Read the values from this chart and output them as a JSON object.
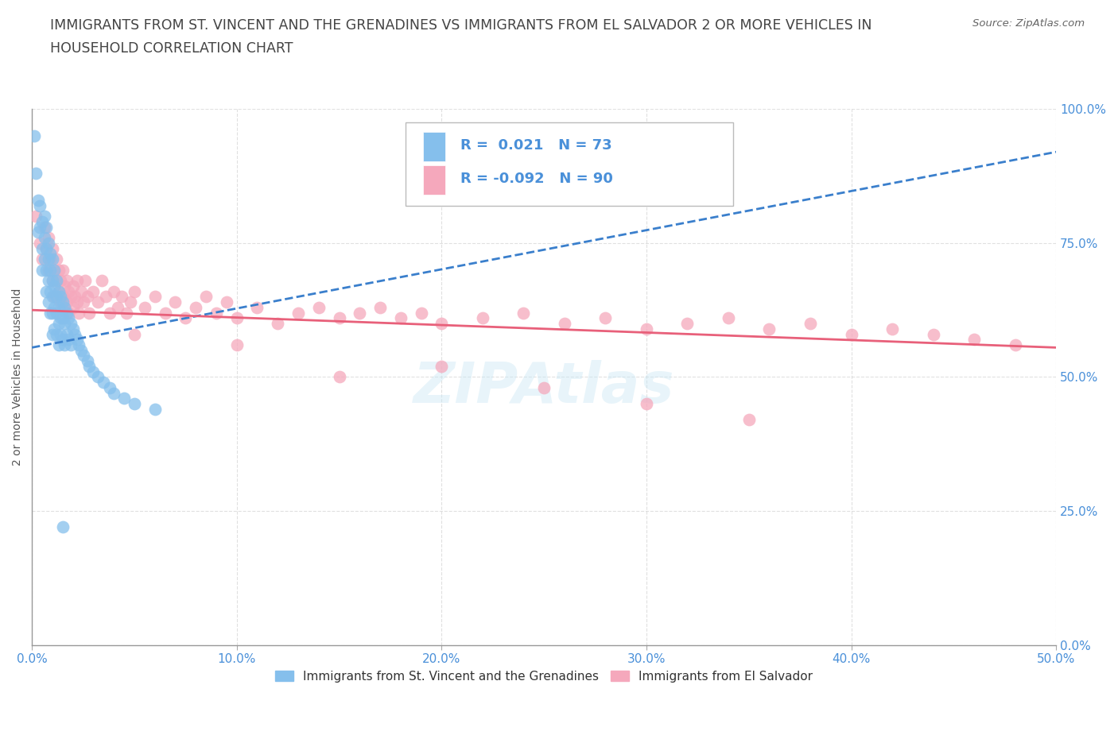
{
  "title": "IMMIGRANTS FROM ST. VINCENT AND THE GRENADINES VS IMMIGRANTS FROM EL SALVADOR 2 OR MORE VEHICLES IN\nHOUSEHOLD CORRELATION CHART",
  "source": "Source: ZipAtlas.com",
  "ylabel": "2 or more Vehicles in Household",
  "xlim": [
    0.0,
    0.5
  ],
  "ylim": [
    0.0,
    1.0
  ],
  "xticks": [
    0.0,
    0.1,
    0.2,
    0.3,
    0.4,
    0.5
  ],
  "xticklabels": [
    "0.0%",
    "10.0%",
    "20.0%",
    "30.0%",
    "40.0%",
    "50.0%"
  ],
  "yticks": [
    0.0,
    0.25,
    0.5,
    0.75,
    1.0
  ],
  "yticklabels": [
    "0.0%",
    "25.0%",
    "50.0%",
    "75.0%",
    "100.0%"
  ],
  "series1_color": "#85BFEC",
  "series2_color": "#F5A8BC",
  "series1_line_color": "#3A7FCC",
  "series2_line_color": "#E8607A",
  "series1_label": "Immigrants from St. Vincent and the Grenadines",
  "series2_label": "Immigrants from El Salvador",
  "R1": 0.021,
  "N1": 73,
  "R2": -0.092,
  "N2": 90,
  "watermark": "ZIPAtlas",
  "background_color": "#ffffff",
  "grid_color": "#cccccc",
  "title_color": "#444444",
  "axis_color": "#4A90D9",
  "legend_R_color": "#4A90D9",
  "series1_x": [
    0.001,
    0.002,
    0.003,
    0.003,
    0.004,
    0.004,
    0.005,
    0.005,
    0.005,
    0.006,
    0.006,
    0.006,
    0.007,
    0.007,
    0.007,
    0.007,
    0.008,
    0.008,
    0.008,
    0.008,
    0.009,
    0.009,
    0.009,
    0.009,
    0.01,
    0.01,
    0.01,
    0.01,
    0.01,
    0.011,
    0.011,
    0.011,
    0.011,
    0.012,
    0.012,
    0.012,
    0.012,
    0.013,
    0.013,
    0.013,
    0.013,
    0.014,
    0.014,
    0.014,
    0.015,
    0.015,
    0.015,
    0.016,
    0.016,
    0.016,
    0.017,
    0.017,
    0.018,
    0.018,
    0.019,
    0.019,
    0.02,
    0.021,
    0.022,
    0.023,
    0.024,
    0.025,
    0.027,
    0.028,
    0.03,
    0.032,
    0.035,
    0.038,
    0.04,
    0.045,
    0.05,
    0.06,
    0.015
  ],
  "series1_y": [
    0.95,
    0.88,
    0.83,
    0.77,
    0.82,
    0.78,
    0.79,
    0.74,
    0.7,
    0.8,
    0.76,
    0.72,
    0.78,
    0.74,
    0.7,
    0.66,
    0.75,
    0.72,
    0.68,
    0.64,
    0.73,
    0.7,
    0.66,
    0.62,
    0.72,
    0.68,
    0.65,
    0.62,
    0.58,
    0.7,
    0.67,
    0.63,
    0.59,
    0.68,
    0.65,
    0.62,
    0.58,
    0.66,
    0.63,
    0.6,
    0.56,
    0.65,
    0.61,
    0.58,
    0.64,
    0.61,
    0.57,
    0.63,
    0.6,
    0.56,
    0.62,
    0.58,
    0.61,
    0.57,
    0.6,
    0.56,
    0.59,
    0.58,
    0.57,
    0.56,
    0.55,
    0.54,
    0.53,
    0.52,
    0.51,
    0.5,
    0.49,
    0.48,
    0.47,
    0.46,
    0.45,
    0.44,
    0.22
  ],
  "series2_x": [
    0.002,
    0.004,
    0.005,
    0.006,
    0.007,
    0.008,
    0.008,
    0.009,
    0.01,
    0.01,
    0.011,
    0.011,
    0.012,
    0.012,
    0.013,
    0.013,
    0.014,
    0.014,
    0.015,
    0.015,
    0.016,
    0.016,
    0.017,
    0.017,
    0.018,
    0.018,
    0.019,
    0.02,
    0.02,
    0.021,
    0.022,
    0.022,
    0.023,
    0.024,
    0.025,
    0.026,
    0.027,
    0.028,
    0.03,
    0.032,
    0.034,
    0.036,
    0.038,
    0.04,
    0.042,
    0.044,
    0.046,
    0.048,
    0.05,
    0.055,
    0.06,
    0.065,
    0.07,
    0.075,
    0.08,
    0.085,
    0.09,
    0.095,
    0.1,
    0.11,
    0.12,
    0.13,
    0.14,
    0.15,
    0.16,
    0.17,
    0.18,
    0.19,
    0.2,
    0.22,
    0.24,
    0.26,
    0.28,
    0.3,
    0.32,
    0.34,
    0.36,
    0.38,
    0.4,
    0.42,
    0.44,
    0.46,
    0.48,
    0.15,
    0.2,
    0.25,
    0.3,
    0.35,
    0.1,
    0.05
  ],
  "series2_y": [
    0.8,
    0.75,
    0.72,
    0.78,
    0.74,
    0.7,
    0.76,
    0.72,
    0.74,
    0.68,
    0.7,
    0.65,
    0.72,
    0.68,
    0.7,
    0.66,
    0.68,
    0.64,
    0.7,
    0.65,
    0.67,
    0.63,
    0.68,
    0.64,
    0.66,
    0.62,
    0.65,
    0.67,
    0.63,
    0.65,
    0.68,
    0.64,
    0.62,
    0.66,
    0.64,
    0.68,
    0.65,
    0.62,
    0.66,
    0.64,
    0.68,
    0.65,
    0.62,
    0.66,
    0.63,
    0.65,
    0.62,
    0.64,
    0.66,
    0.63,
    0.65,
    0.62,
    0.64,
    0.61,
    0.63,
    0.65,
    0.62,
    0.64,
    0.61,
    0.63,
    0.6,
    0.62,
    0.63,
    0.61,
    0.62,
    0.63,
    0.61,
    0.62,
    0.6,
    0.61,
    0.62,
    0.6,
    0.61,
    0.59,
    0.6,
    0.61,
    0.59,
    0.6,
    0.58,
    0.59,
    0.58,
    0.57,
    0.56,
    0.5,
    0.52,
    0.48,
    0.45,
    0.42,
    0.56,
    0.58
  ],
  "line1_x0": 0.0,
  "line1_y0": 0.555,
  "line1_x1": 0.5,
  "line1_y1": 0.92,
  "line2_x0": 0.0,
  "line2_y0": 0.625,
  "line2_x1": 0.5,
  "line2_y1": 0.555
}
